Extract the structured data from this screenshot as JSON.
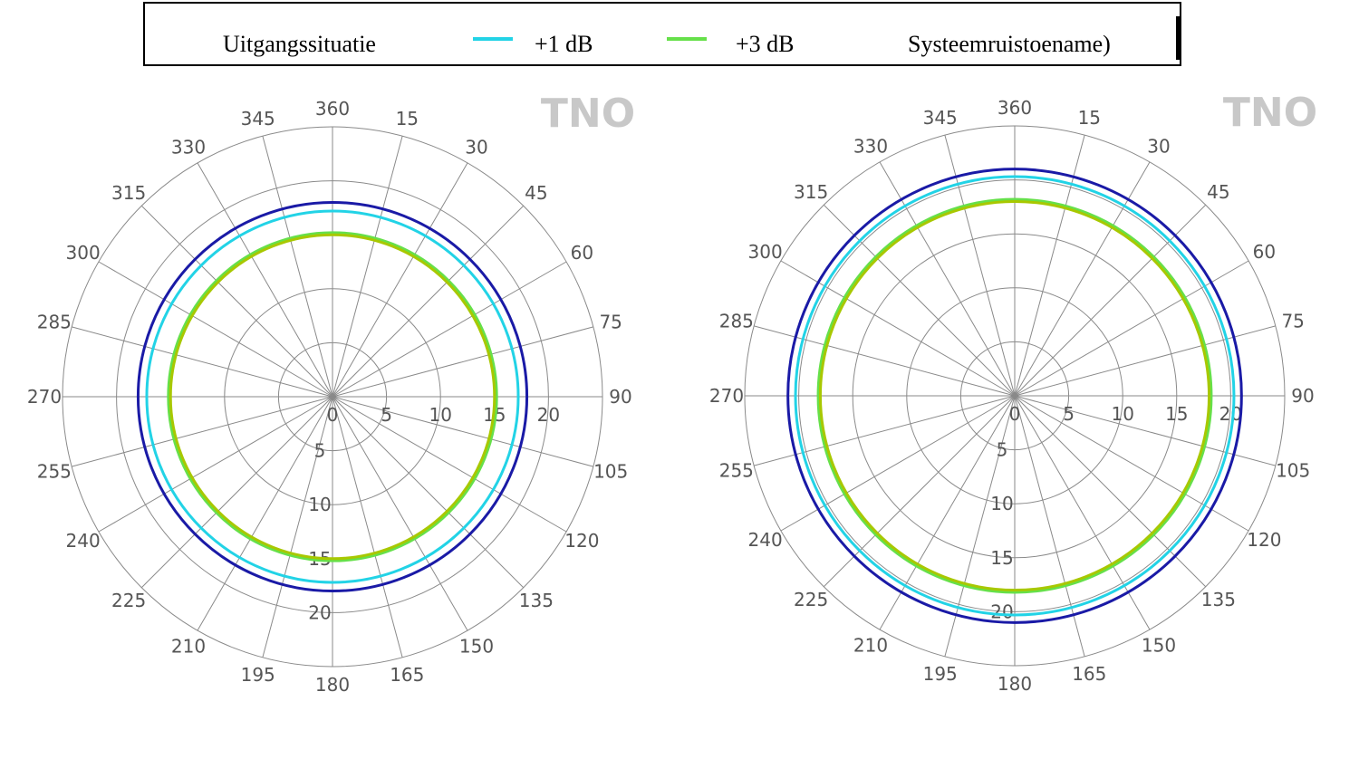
{
  "legend": {
    "items": [
      {
        "label": "Uitgangssituatie",
        "color": ""
      },
      {
        "label": "+1  dB",
        "color": "#22d3e6"
      },
      {
        "label": "+3  dB",
        "color": "#66e04a"
      },
      {
        "label": "Systeemruistoename)",
        "color": ""
      }
    ]
  },
  "watermark": "TNO",
  "chart_data": [
    {
      "type": "polar",
      "angle_labels": [
        "360",
        "15",
        "30",
        "45",
        "60",
        "75",
        "90",
        "105",
        "120",
        "135",
        "150",
        "165",
        "180",
        "195",
        "210",
        "225",
        "240",
        "255",
        "270",
        "285",
        "300",
        "315",
        "330",
        "345"
      ],
      "radial_ticks": [
        0,
        5,
        10,
        15,
        20
      ],
      "r_max": 25,
      "series": [
        {
          "color": "#1a1aa6",
          "values": [
            18,
            18,
            18,
            18,
            18,
            18,
            18,
            18,
            18,
            18,
            18,
            18,
            18,
            18,
            18,
            18,
            18,
            18,
            18,
            18,
            18,
            18,
            18,
            18
          ]
        },
        {
          "color": "#22d3e6",
          "values": [
            17.2,
            17.2,
            17.2,
            17.2,
            17.2,
            17.2,
            17.2,
            17.2,
            17.2,
            17.2,
            17.2,
            17.2,
            17.2,
            17.2,
            17.2,
            17.2,
            17.2,
            17.2,
            17.2,
            17.2,
            17.2,
            17.2,
            17.2,
            17.2
          ]
        },
        {
          "color": "#66e04a",
          "values": [
            15.2,
            15.2,
            15.2,
            15.2,
            15.2,
            15.2,
            15.2,
            15.2,
            15.2,
            15.2,
            15.2,
            15.2,
            15.2,
            15.2,
            15.2,
            15.2,
            15.2,
            15.2,
            15.2,
            15.2,
            15.2,
            15.2,
            15.2,
            15.2
          ]
        },
        {
          "color": "#a8c800",
          "values": [
            15.0,
            15.0,
            15.0,
            15.0,
            15.0,
            15.0,
            15.0,
            15.0,
            15.0,
            15.0,
            15.0,
            15.0,
            15.0,
            15.0,
            15.0,
            15.0,
            15.0,
            15.0,
            15.0,
            15.0,
            15.0,
            15.0,
            15.0,
            15.0
          ]
        }
      ]
    },
    {
      "type": "polar",
      "angle_labels": [
        "360",
        "15",
        "30",
        "45",
        "60",
        "75",
        "90",
        "105",
        "120",
        "135",
        "150",
        "165",
        "180",
        "195",
        "210",
        "225",
        "240",
        "255",
        "270",
        "285",
        "300",
        "315",
        "330",
        "345"
      ],
      "radial_ticks": [
        0,
        5,
        10,
        15,
        20
      ],
      "r_max": 25,
      "series": [
        {
          "color": "#1a1aa6",
          "values": [
            21,
            21,
            21,
            21,
            21,
            21,
            21,
            21,
            21,
            21,
            21,
            21,
            21,
            21,
            21,
            21,
            21,
            21,
            21,
            21,
            21,
            21,
            21,
            21
          ]
        },
        {
          "color": "#22d3e6",
          "values": [
            20.3,
            20.3,
            20.3,
            20.3,
            20.3,
            20.3,
            20.3,
            20.3,
            20.3,
            20.3,
            20.3,
            20.3,
            20.3,
            20.3,
            20.3,
            20.3,
            20.3,
            20.3,
            20.3,
            20.3,
            20.3,
            20.3,
            20.3,
            20.3
          ]
        },
        {
          "color": "#66e04a",
          "values": [
            18.2,
            18.2,
            18.2,
            18.2,
            18.2,
            18.2,
            18.2,
            18.2,
            18.2,
            18.2,
            18.2,
            18.2,
            18.2,
            18.2,
            18.2,
            18.2,
            18.2,
            18.2,
            18.2,
            18.2,
            18.2,
            18.2,
            18.2,
            18.2
          ]
        },
        {
          "color": "#a8c800",
          "values": [
            18.0,
            18.0,
            18.0,
            18.0,
            18.0,
            18.0,
            18.0,
            18.0,
            18.0,
            18.0,
            18.0,
            18.0,
            18.0,
            18.0,
            18.0,
            18.0,
            18.0,
            18.0,
            18.0,
            18.0,
            18.0,
            18.0,
            18.0,
            18.0
          ]
        }
      ]
    }
  ]
}
